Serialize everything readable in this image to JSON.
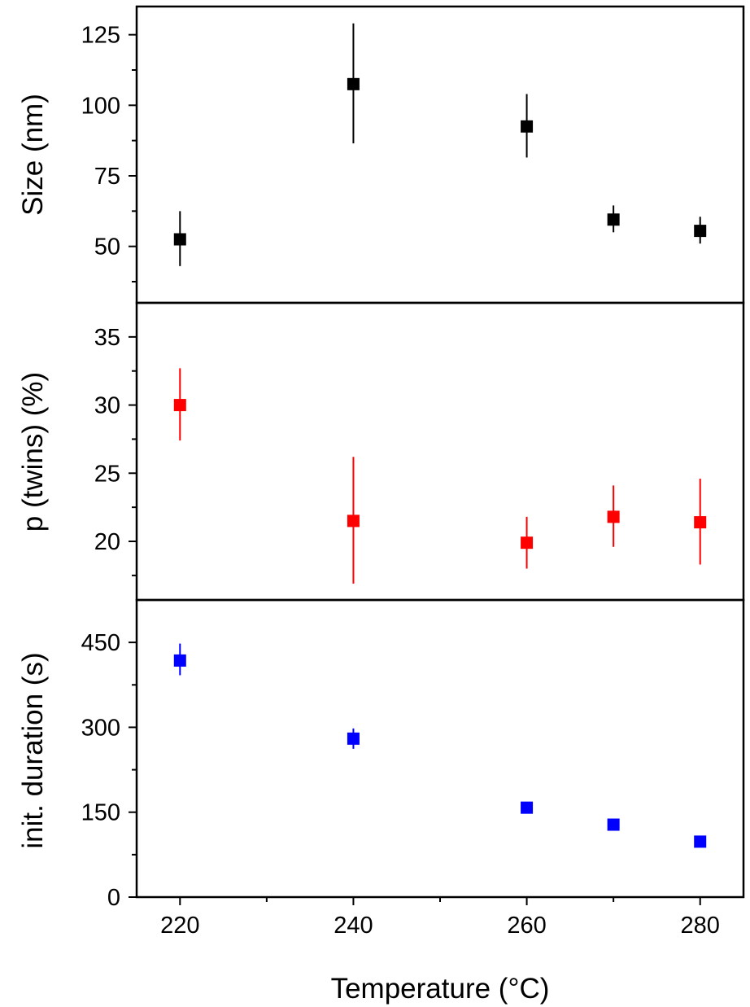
{
  "chart_data": [
    {
      "type": "scatter",
      "ylabel": "Size (nm)",
      "xlim": [
        215,
        285
      ],
      "ylim": [
        30,
        135
      ],
      "yticks": [
        50,
        75,
        100,
        125
      ],
      "y_minor_ticks": [
        37.5,
        62.5,
        87.5,
        112.5
      ],
      "color": "#000000",
      "points": [
        {
          "x": 220,
          "y": 52.5,
          "err_low": 43.0,
          "err_high": 62.5
        },
        {
          "x": 240,
          "y": 107.5,
          "err_low": 86.5,
          "err_high": 129.0
        },
        {
          "x": 260,
          "y": 92.5,
          "err_low": 81.5,
          "err_high": 104.0
        },
        {
          "x": 270,
          "y": 59.5,
          "err_low": 55.0,
          "err_high": 64.5
        },
        {
          "x": 280,
          "y": 55.5,
          "err_low": 51.0,
          "err_high": 60.5
        }
      ]
    },
    {
      "type": "scatter",
      "ylabel": "p (twins) (%)",
      "xlim": [
        215,
        285
      ],
      "ylim": [
        15.7,
        37.5
      ],
      "yticks": [
        20,
        25,
        30,
        35
      ],
      "y_minor_ticks": [
        17.5,
        22.5,
        27.5,
        32.5
      ],
      "color": "#ff0000",
      "points": [
        {
          "x": 220,
          "y": 30.0,
          "err_low": 27.4,
          "err_high": 32.7
        },
        {
          "x": 240,
          "y": 21.5,
          "err_low": 16.9,
          "err_high": 26.2
        },
        {
          "x": 260,
          "y": 19.9,
          "err_low": 18.0,
          "err_high": 21.8
        },
        {
          "x": 270,
          "y": 21.8,
          "err_low": 19.6,
          "err_high": 24.1
        },
        {
          "x": 280,
          "y": 21.4,
          "err_low": 18.3,
          "err_high": 24.6
        }
      ]
    },
    {
      "type": "scatter",
      "ylabel": "init. duration (s)",
      "xlabel": "Temperature (°C)",
      "xlim": [
        215,
        285
      ],
      "ylim": [
        0,
        525
      ],
      "yticks": [
        0,
        150,
        300,
        450
      ],
      "y_minor_ticks": [
        75,
        225,
        375
      ],
      "xticks": [
        220,
        240,
        260,
        280
      ],
      "x_minor_ticks": [
        230,
        250,
        270
      ],
      "color": "#0000ff",
      "points": [
        {
          "x": 220,
          "y": 418,
          "err_low": 392,
          "err_high": 448
        },
        {
          "x": 240,
          "y": 280,
          "err_low": 262,
          "err_high": 298
        },
        {
          "x": 260,
          "y": 158,
          "err_low": 158,
          "err_high": 158
        },
        {
          "x": 270,
          "y": 128,
          "err_low": 128,
          "err_high": 128
        },
        {
          "x": 280,
          "y": 98,
          "err_low": 98,
          "err_high": 98
        }
      ]
    }
  ]
}
